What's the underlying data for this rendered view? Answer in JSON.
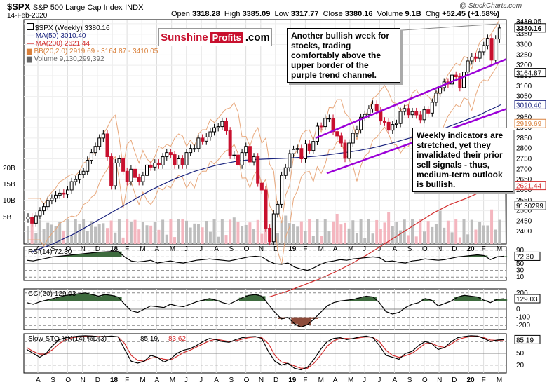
{
  "header": {
    "symbol": "$SPX",
    "name": "S&P 500 Large Cap Index",
    "exchange": "INDX",
    "date": "14-Feb-2020",
    "open_label": "Open",
    "open": "3318.28",
    "high_label": "High",
    "high": "3385.09",
    "low_label": "Low",
    "low": "3317.77",
    "close_label": "Close",
    "close": "3380.16",
    "volume_label": "Volume",
    "volume": "9.1B",
    "chg_label": "Chg",
    "chg": "+52.45 (+1.58%)",
    "watermark": "@ StockCharts.com"
  },
  "logo": {
    "part1": "Sunshine",
    "part2": "Profits",
    "part3": ".com"
  },
  "legend": {
    "price": "$SPX (Weekly) 3380.16",
    "ma50": "MA(50) 3010.40",
    "ma200": "MA(200) 2621.44",
    "bb": "BB(20,2.0) 2919.69 - 3164.87 - 3410.05",
    "volume": "Volume 9,130,299,392"
  },
  "annotations": {
    "top": "Another bullish week for stocks, trading comfortably above the upper border of the purple trend channel.",
    "mid": "Weekly indicators are stretched, yet they invalidated their prior sell signals - thus, medium-term outlook is bullish."
  },
  "colors": {
    "up": "#000000",
    "down": "#c8102e",
    "ma50": "#1a237e",
    "ma200": "#d32f2f",
    "bb": "#e8a87c",
    "volume": "#bdbdbd",
    "volume_down": "#f4b6bf",
    "channel": "#9b00d8",
    "osc_fill": "#3e6b3e",
    "osc_fill_low": "#8d4b3a",
    "stoch_k": "#000000",
    "stoch_d": "#d32f2f"
  },
  "chart_data": [
    {
      "type": "candlestick",
      "title": "$SPX (Weekly) 3380.16",
      "y_ticks": [
        2400,
        2450,
        2500,
        2550,
        2600,
        2650,
        2700,
        2750,
        2800,
        2850,
        2900,
        2950,
        3000,
        3050,
        3100,
        3150,
        3200,
        3250,
        3300,
        3350,
        3400
      ],
      "ylim": [
        2340,
        3420
      ],
      "price_labels": [
        "3380.16",
        "3164.87",
        "3010.40",
        "2919.69",
        "2621.44"
      ],
      "extra_labels": [
        "3410.05",
        "9130299"
      ],
      "volume_ticks": [
        "20B",
        "15B",
        "10B",
        "5B"
      ],
      "x_month_labels": [
        "A",
        "S",
        "O",
        "N",
        "D",
        "18",
        "F",
        "M",
        "A",
        "M",
        "J",
        "J",
        "A",
        "S",
        "O",
        "N",
        "D",
        "19",
        "F",
        "M",
        "A",
        "M",
        "J",
        "J",
        "A",
        "S",
        "O",
        "N",
        "D",
        "20",
        "F",
        "M"
      ],
      "closes": [
        2470,
        2440,
        2475,
        2500,
        2520,
        2550,
        2560,
        2575,
        2585,
        2580,
        2600,
        2640,
        2650,
        2675,
        2690,
        2743,
        2780,
        2810,
        2850,
        2870,
        2760,
        2620,
        2730,
        2750,
        2690,
        2640,
        2700,
        2660,
        2640,
        2670,
        2720,
        2710,
        2730,
        2720,
        2760,
        2780,
        2770,
        2720,
        2750,
        2720,
        2780,
        2800,
        2800,
        2850,
        2835,
        2855,
        2880,
        2900,
        2905,
        2930,
        2885,
        2767,
        2768,
        2720,
        2780,
        2810,
        2735,
        2760,
        2633,
        2600,
        2416,
        2351,
        2485,
        2531,
        2670,
        2707,
        2775,
        2795,
        2800,
        2750,
        2822,
        2790,
        2834,
        2907,
        2905,
        2945,
        2945,
        2881,
        2860,
        2826,
        2752,
        2826,
        2873,
        2890,
        2950,
        2964,
        2990,
        3013,
        2980,
        2932,
        2926,
        2888,
        2915,
        2920,
        2978,
        2992,
        2962,
        2977,
        2961,
        2938,
        2986,
        2970,
        3022,
        3066,
        3093,
        3120,
        3110,
        3153,
        3145,
        3093,
        3168,
        3221,
        3240,
        3234,
        3265,
        3295,
        3330,
        3225,
        3327,
        3380
      ],
      "ma50": [
        2300,
        2320,
        2340,
        2365,
        2390,
        2420,
        2450,
        2480,
        2510,
        2540,
        2570,
        2600,
        2625,
        2650,
        2670,
        2690,
        2705,
        2720,
        2730,
        2740,
        2745,
        2748,
        2750,
        2752,
        2755,
        2758,
        2762,
        2768,
        2775,
        2782,
        2790,
        2800,
        2812,
        2825,
        2840,
        2855,
        2870,
        2885,
        2900,
        2920,
        2940,
        2960,
        2985,
        3010
      ],
      "ma200": [
        2085,
        2110,
        2140,
        2170,
        2205,
        2245,
        2290,
        2340,
        2390,
        2440,
        2490,
        2530,
        2560,
        2595,
        2621
      ],
      "stoch_k_last": 85.19,
      "stoch_d_last": 83.62
    },
    {
      "type": "line",
      "title": "RSI(14) 72.30",
      "y_ticks": [
        90,
        70,
        50,
        30,
        10
      ],
      "last_label": "72.30",
      "ylim": [
        0,
        100
      ],
      "values": [
        60,
        58,
        62,
        66,
        70,
        72,
        74,
        76,
        78,
        80,
        82,
        84,
        85,
        86,
        86,
        70,
        58,
        55,
        57,
        60,
        52,
        55,
        58,
        54,
        52,
        56,
        60,
        62,
        64,
        62,
        60,
        58,
        62,
        66,
        70,
        72,
        70,
        58,
        50,
        48,
        52,
        40,
        34,
        30,
        38,
        48,
        55,
        58,
        62,
        60,
        64,
        66,
        68,
        70,
        68,
        56,
        58,
        54,
        52,
        58,
        60,
        64,
        62,
        60,
        62,
        66,
        70,
        72,
        74,
        76,
        74,
        62,
        70,
        72
      ]
    },
    {
      "type": "area",
      "title": "CCI(20) 129.03",
      "y_ticks": [
        200,
        100,
        0,
        -100,
        -200
      ],
      "last_label": "129.03",
      "ylim": [
        -250,
        250
      ],
      "values": [
        80,
        60,
        90,
        110,
        130,
        150,
        170,
        180,
        190,
        200,
        180,
        160,
        180,
        170,
        150,
        60,
        -20,
        -40,
        0,
        40,
        30,
        20,
        60,
        40,
        30,
        60,
        90,
        110,
        130,
        110,
        80,
        60,
        100,
        140,
        170,
        180,
        160,
        60,
        -40,
        -120,
        -100,
        -180,
        -220,
        -190,
        -120,
        -40,
        40,
        80,
        100,
        110,
        120,
        140,
        160,
        150,
        80,
        -30,
        -60,
        -40,
        20,
        60,
        80,
        130,
        110,
        40,
        70,
        100,
        150,
        170,
        160,
        150,
        110,
        80,
        120,
        129
      ]
    },
    {
      "type": "line",
      "title": "Slow STO %K(14) %D(3) 85.19, 83.62",
      "y_ticks": [
        80,
        50,
        20
      ],
      "last_label": "85.19",
      "ylim": [
        0,
        100
      ],
      "series": [
        {
          "name": "%K",
          "values": [
            60,
            50,
            40,
            50,
            70,
            85,
            90,
            92,
            94,
            95,
            94,
            92,
            93,
            94,
            92,
            60,
            30,
            25,
            30,
            45,
            40,
            28,
            35,
            50,
            58,
            62,
            70,
            80,
            88,
            85,
            80,
            78,
            85,
            90,
            92,
            93,
            88,
            55,
            30,
            20,
            25,
            12,
            8,
            15,
            35,
            60,
            80,
            88,
            90,
            85,
            88,
            92,
            94,
            90,
            70,
            45,
            40,
            35,
            50,
            55,
            70,
            80,
            75,
            60,
            65,
            80,
            90,
            93,
            95,
            94,
            88,
            80,
            84,
            85
          ]
        },
        {
          "name": "%D",
          "values": [
            65,
            55,
            48,
            48,
            60,
            75,
            85,
            90,
            92,
            94,
            94,
            93,
            93,
            93,
            92,
            75,
            45,
            32,
            30,
            38,
            40,
            35,
            33,
            42,
            52,
            58,
            66,
            74,
            82,
            86,
            83,
            80,
            82,
            86,
            90,
            92,
            90,
            75,
            45,
            28,
            24,
            18,
            12,
            12,
            25,
            45,
            68,
            82,
            88,
            88,
            87,
            90,
            92,
            91,
            80,
            58,
            45,
            40,
            44,
            50,
            62,
            75,
            76,
            68,
            65,
            74,
            85,
            90,
            93,
            94,
            90,
            84,
            83,
            84
          ]
        }
      ]
    }
  ],
  "panels": {
    "rsi_label": "RSI(14) 72.30",
    "cci_label": "CCI(20) 129.03",
    "sto_label_a": "Slow STO %K(14) %D(3)",
    "sto_label_b": "85.19,",
    "sto_label_c": "83.62"
  }
}
